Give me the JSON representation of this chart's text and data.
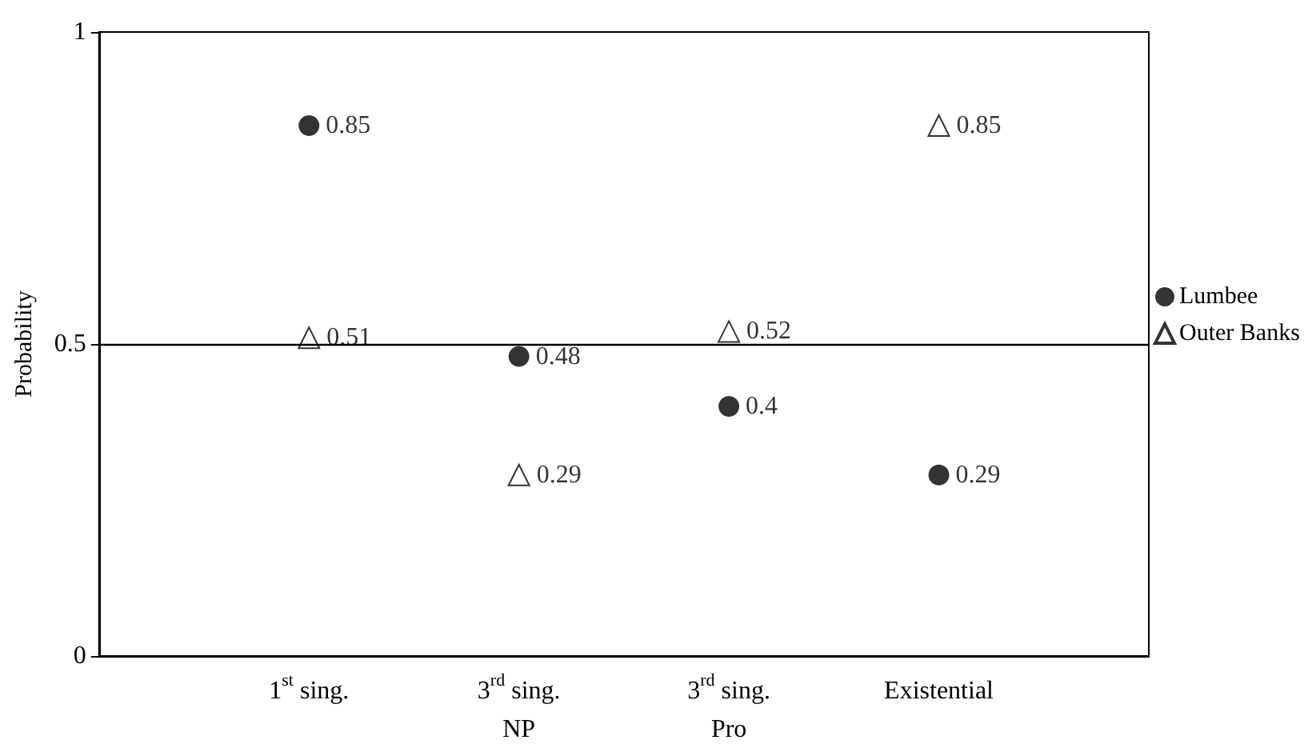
{
  "chart_data": {
    "type": "scatter",
    "ylabel": "Probability",
    "categories": [
      "1$^{st}$ sing.",
      "3$^{rd}$ sing.\nNP",
      "3$^{rd}$ sing.\nPro",
      "Existential"
    ],
    "series": [
      {
        "name": "Lumbee",
        "color": "#000000",
        "marker": "circle",
        "values": [
          0.85,
          0.48,
          0.4,
          0.29
        ]
      },
      {
        "name": "Outer Banks",
        "color": "#000000",
        "marker": "triangle",
        "values": [
          0.51,
          0.29,
          0.52,
          0.85
        ]
      }
    ],
    "ylim": [
      0,
      1
    ],
    "yticks": [
      0,
      0.5,
      1
    ],
    "ref_lines": [
      {
        "axis": "y",
        "value": 0.5,
        "color": "#000000",
        "line_style": "solid"
      }
    ],
    "data_labels": true,
    "grid": false,
    "legend": "right"
  }
}
